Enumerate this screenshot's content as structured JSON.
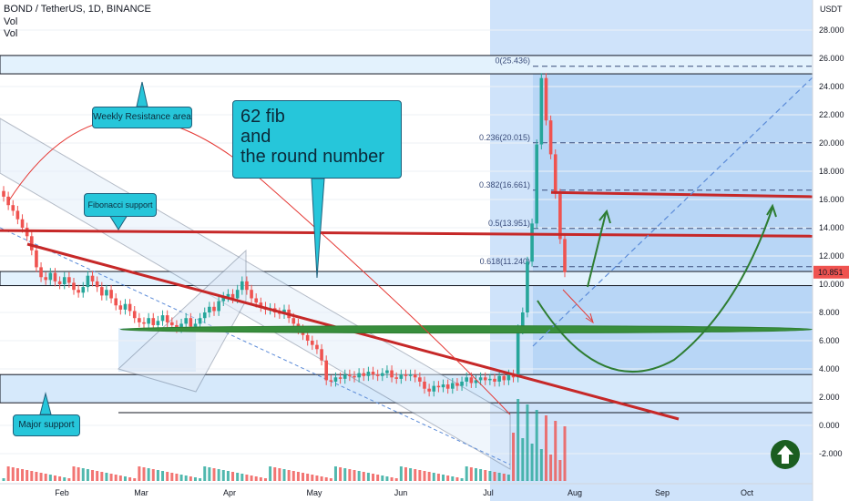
{
  "header": {
    "title": "BOND / TetherUS, 1D, BINANCE",
    "vol1": "Vol",
    "vol2": "Vol"
  },
  "axis": {
    "unit": "USDT",
    "y_ticks": [
      "28.000",
      "26.000",
      "24.000",
      "22.000",
      "20.000",
      "18.000",
      "16.000",
      "14.000",
      "12.000",
      "10.000",
      "8.000",
      "6.000",
      "4.000",
      "2.000",
      "0.000",
      "-2.000"
    ],
    "y_values": [
      28,
      26,
      24,
      22,
      20,
      18,
      16,
      14,
      12,
      10,
      8,
      6,
      4,
      2,
      0,
      -2
    ],
    "x_ticks": [
      "Feb",
      "Mar",
      "Apr",
      "May",
      "Jun",
      "Jul",
      "Aug",
      "Sep",
      "Oct"
    ],
    "price_label": "10.851",
    "price_color": "#ef5350"
  },
  "fib": {
    "levels": [
      {
        "label": "0(25.436)",
        "value": 25.436
      },
      {
        "label": "0.236(20.015)",
        "value": 20.015
      },
      {
        "label": "0.382(16.661)",
        "value": 16.661
      },
      {
        "label": "0.5(13.951)",
        "value": 13.951
      },
      {
        "label": "0.618(11.240)",
        "value": 11.24
      }
    ]
  },
  "callouts": {
    "weekly": "Weekly Resistance area",
    "fib_support": "Fibonacci support",
    "big_line1": "62 fib",
    "big_line2": "and",
    "big_line3": "the round number",
    "major": "Major support"
  },
  "colors": {
    "up": "#26a69a",
    "down": "#ef5350",
    "trend_red": "#c62828",
    "support_green": "#2e7d32",
    "callout": "#26c6da",
    "highlight": "#90caf9"
  },
  "chart_data": {
    "type": "candlestick",
    "title": "BOND / TetherUS, 1D, BINANCE",
    "ylabel": "USDT",
    "ylim": [
      -3,
      29
    ],
    "x_ticks": [
      "Feb",
      "Mar",
      "Apr",
      "May",
      "Jun",
      "Jul",
      "Aug",
      "Sep",
      "Oct"
    ],
    "last_price": 10.851,
    "fib_levels": [
      25.436,
      20.015,
      16.661,
      13.951,
      11.24
    ],
    "closes": [
      16.2,
      15.6,
      15.2,
      14.6,
      14.0,
      13.4,
      12.4,
      11.2,
      10.5,
      10.3,
      10.8,
      10.2,
      10.0,
      10.5,
      10.1,
      9.6,
      9.4,
      9.8,
      10.6,
      10.2,
      9.8,
      9.2,
      9.6,
      9.0,
      8.5,
      8.2,
      8.6,
      8.1,
      7.6,
      7.3,
      7.2,
      7.6,
      7.1,
      7.4,
      7.8,
      7.3,
      7.1,
      6.9,
      7.2,
      7.6,
      7.0,
      7.2,
      7.6,
      8.0,
      8.4,
      8.1,
      8.8,
      9.1,
      9.3,
      9.0,
      9.6,
      10.2,
      9.6,
      9.0,
      8.7,
      8.4,
      8.2,
      8.3,
      8.0,
      7.9,
      8.2,
      7.6,
      7.2,
      6.8,
      6.4,
      6.0,
      5.7,
      5.4,
      4.6,
      3.2,
      3.1,
      3.4,
      3.3,
      3.6,
      3.5,
      3.4,
      3.7,
      3.5,
      3.8,
      3.6,
      3.5,
      3.7,
      3.9,
      3.4,
      3.3,
      3.6,
      3.5,
      3.6,
      3.4,
      3.1,
      2.6,
      2.4,
      2.8,
      2.7,
      2.9,
      2.6,
      3.0,
      2.8,
      3.1,
      3.4,
      3.0,
      3.2,
      3.4,
      3.2,
      3.3,
      3.1,
      3.5,
      3.2,
      3.6,
      3.4,
      6.8,
      8.0,
      11.6,
      14.3,
      19.9,
      24.6,
      21.6,
      19.2,
      16.4,
      13.2,
      10.851
    ],
    "annotations": [
      "Weekly Resistance area",
      "Fibonacci support",
      "62 fib and the round number",
      "Major support"
    ]
  }
}
